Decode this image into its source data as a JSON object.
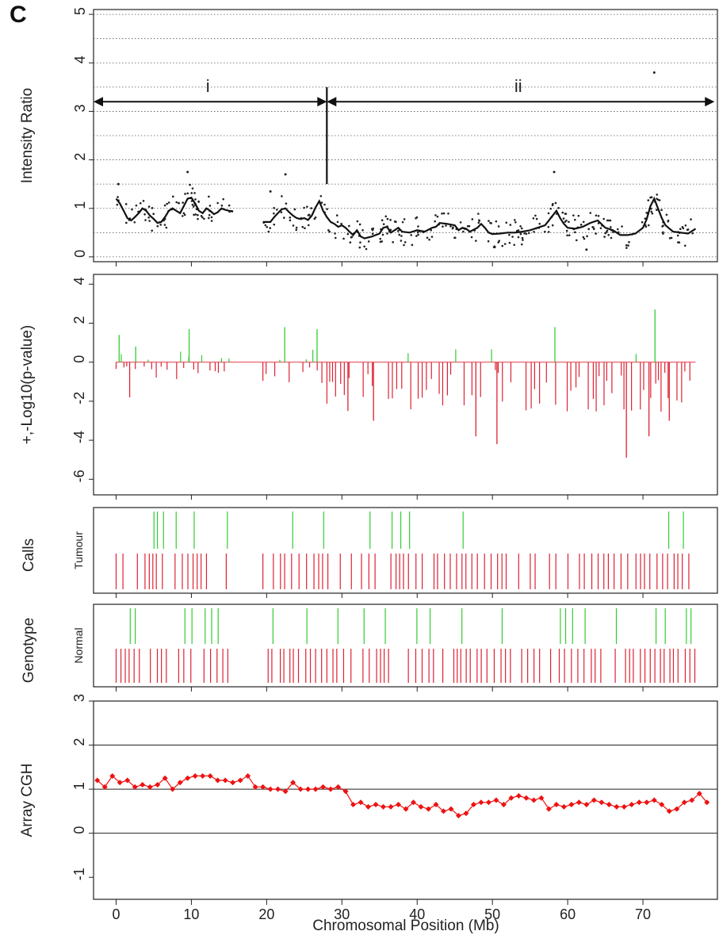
{
  "figure": {
    "panel_label": "C",
    "xlabel": "Chromosomal Position (Mb)",
    "colors": {
      "gain": "#33cc33",
      "loss": "#dd2233",
      "cgh": "#ee1111",
      "line": "#111111"
    }
  },
  "chart_data": [
    {
      "type": "scatter",
      "ylabel": "Intensity Ratio",
      "xlim": [
        -3,
        80
      ],
      "ylim": [
        -0.1,
        5.1
      ],
      "yticks": [
        0,
        1,
        2,
        3,
        4,
        5
      ],
      "xticks": [
        0,
        10,
        20,
        30,
        40,
        50,
        60,
        70
      ],
      "grid": "dotted-horizontal",
      "regions": [
        {
          "label": "i",
          "from": -3,
          "to": 28,
          "y": 3.2
        },
        {
          "label": "ii",
          "from": 28,
          "to": 79.5,
          "y": 3.2
        }
      ],
      "breakpoint": {
        "x": 28,
        "y_from": 1.5,
        "y_to": 3.5
      },
      "outliers": [
        {
          "x": 0.3,
          "y": 1.5
        },
        {
          "x": 9.5,
          "y": 1.75
        },
        {
          "x": 22.5,
          "y": 1.7
        },
        {
          "x": 20.5,
          "y": 1.35
        },
        {
          "x": 58.2,
          "y": 1.75
        },
        {
          "x": 71.5,
          "y": 3.8
        },
        {
          "x": 62.5,
          "y": 0.15
        },
        {
          "x": 50.3,
          "y": 0.2
        }
      ],
      "smoothed": [
        [
          [
            0.0,
            1.2
          ],
          [
            0.5,
            1.1
          ],
          [
            1.0,
            0.95
          ],
          [
            1.5,
            0.8
          ],
          [
            2.0,
            0.75
          ],
          [
            2.5,
            0.82
          ],
          [
            3.0,
            0.9
          ],
          [
            3.5,
            1.0
          ],
          [
            4.0,
            0.95
          ],
          [
            4.5,
            0.85
          ],
          [
            5.0,
            0.78
          ],
          [
            5.5,
            0.7
          ],
          [
            6.0,
            0.72
          ],
          [
            6.5,
            0.82
          ],
          [
            7.0,
            0.95
          ],
          [
            7.5,
            1.0
          ],
          [
            8.0,
            0.95
          ],
          [
            8.5,
            0.9
          ],
          [
            9.0,
            1.05
          ],
          [
            9.5,
            1.2
          ],
          [
            10.0,
            1.22
          ],
          [
            10.5,
            1.1
          ],
          [
            11.0,
            0.95
          ],
          [
            11.5,
            0.9
          ],
          [
            12.0,
            1.0
          ],
          [
            12.5,
            0.95
          ],
          [
            13.0,
            0.88
          ],
          [
            13.5,
            0.92
          ],
          [
            14.0,
            1.0
          ],
          [
            14.5,
            0.97
          ],
          [
            15.0,
            0.95
          ],
          [
            15.5,
            0.94
          ]
        ],
        [
          [
            19.5,
            0.72
          ],
          [
            20.5,
            0.72
          ],
          [
            21.0,
            0.82
          ],
          [
            21.5,
            0.9
          ],
          [
            22.0,
            0.98
          ],
          [
            22.5,
            1.0
          ],
          [
            23.0,
            0.92
          ],
          [
            23.5,
            0.85
          ],
          [
            24.0,
            0.8
          ],
          [
            24.5,
            0.78
          ],
          [
            25.0,
            0.8
          ],
          [
            25.5,
            0.76
          ],
          [
            26.0,
            0.85
          ],
          [
            26.5,
            1.02
          ],
          [
            27.0,
            1.15
          ],
          [
            27.5,
            0.95
          ],
          [
            28.0,
            0.82
          ],
          [
            28.5,
            0.72
          ],
          [
            29.0,
            0.68
          ],
          [
            29.5,
            0.62
          ],
          [
            30.0,
            0.65
          ],
          [
            30.5,
            0.6
          ],
          [
            31.0,
            0.52
          ],
          [
            31.5,
            0.45
          ],
          [
            32.0,
            0.55
          ],
          [
            32.5,
            0.42
          ],
          [
            33.0,
            0.38
          ],
          [
            34.0,
            0.42
          ],
          [
            35.0,
            0.48
          ],
          [
            35.5,
            0.6
          ],
          [
            36.0,
            0.62
          ],
          [
            36.5,
            0.5
          ],
          [
            37.0,
            0.55
          ],
          [
            37.5,
            0.6
          ],
          [
            38.0,
            0.52
          ],
          [
            39.0,
            0.5
          ],
          [
            40.0,
            0.55
          ],
          [
            41.0,
            0.52
          ],
          [
            42.0,
            0.6
          ],
          [
            42.5,
            0.62
          ],
          [
            43.0,
            0.7
          ],
          [
            44.0,
            0.68
          ],
          [
            45.0,
            0.65
          ],
          [
            45.5,
            0.55
          ],
          [
            46.0,
            0.6
          ],
          [
            46.5,
            0.58
          ],
          [
            47.0,
            0.52
          ],
          [
            48.0,
            0.6
          ],
          [
            48.5,
            0.68
          ],
          [
            49.0,
            0.6
          ],
          [
            49.5,
            0.5
          ],
          [
            50.0,
            0.47
          ],
          [
            51.0,
            0.48
          ],
          [
            52.0,
            0.5
          ],
          [
            53.0,
            0.5
          ],
          [
            54.0,
            0.52
          ],
          [
            55.0,
            0.55
          ],
          [
            56.0,
            0.6
          ],
          [
            57.0,
            0.65
          ],
          [
            58.0,
            0.85
          ],
          [
            58.5,
            0.95
          ],
          [
            59.0,
            0.8
          ],
          [
            59.5,
            0.68
          ],
          [
            60.0,
            0.6
          ],
          [
            61.0,
            0.58
          ],
          [
            62.0,
            0.62
          ],
          [
            63.0,
            0.7
          ],
          [
            64.0,
            0.75
          ],
          [
            65.0,
            0.6
          ],
          [
            66.0,
            0.55
          ],
          [
            67.0,
            0.45
          ],
          [
            68.0,
            0.45
          ],
          [
            69.0,
            0.48
          ],
          [
            70.0,
            0.6
          ],
          [
            70.5,
            0.78
          ],
          [
            71.0,
            1.05
          ],
          [
            71.5,
            1.2
          ],
          [
            72.0,
            1.0
          ],
          [
            72.5,
            0.8
          ],
          [
            73.0,
            0.65
          ],
          [
            74.0,
            0.52
          ],
          [
            75.0,
            0.5
          ],
          [
            76.0,
            0.48
          ],
          [
            77.0,
            0.58
          ]
        ]
      ]
    },
    {
      "type": "bar",
      "ylabel": "+,-Log10(p-value)",
      "xlim": [
        -3,
        80
      ],
      "ylim": [
        -6.8,
        4.5
      ],
      "yticks": [
        4,
        2,
        0,
        -2,
        -4,
        -6
      ],
      "note": "signed significance per SNP; positive bars green, negative bars red",
      "highlights": [
        {
          "x": 0.4,
          "y": 1.4
        },
        {
          "x": 2.6,
          "y": 0.8
        },
        {
          "x": 9.7,
          "y": 1.7
        },
        {
          "x": 22.4,
          "y": 1.8
        },
        {
          "x": 26.7,
          "y": 1.7
        },
        {
          "x": 58.3,
          "y": 1.8
        },
        {
          "x": 71.6,
          "y": 2.7
        },
        {
          "x": 50.6,
          "y": -4.2
        },
        {
          "x": 47.8,
          "y": -3.8
        },
        {
          "x": 67.8,
          "y": -4.9
        },
        {
          "x": 70.8,
          "y": -3.8
        },
        {
          "x": 73.5,
          "y": -3.0
        },
        {
          "x": 34.2,
          "y": -3.0
        },
        {
          "x": 30.8,
          "y": -2.5
        },
        {
          "x": 1.8,
          "y": -1.8
        }
      ]
    },
    {
      "type": "bar",
      "ylabel": "Calls",
      "track_label": "Tumour",
      "xlim": [
        -3,
        80
      ],
      "note": "genotype call tracks: upper green ticks, lower red ticks"
    },
    {
      "type": "bar",
      "ylabel": "Genotype",
      "track_label": "Normal",
      "xlim": [
        -3,
        80
      ]
    },
    {
      "type": "line",
      "ylabel": "Array CGH",
      "xlim": [
        -3,
        80
      ],
      "ylim": [
        -1.5,
        3
      ],
      "yticks": [
        3,
        2,
        1,
        0,
        -1
      ],
      "hlines": [
        2,
        1,
        0
      ],
      "series": [
        {
          "x": [
            -2.5,
            -1.5,
            -0.5,
            0.5,
            1.5,
            2.5,
            3.5,
            4.5,
            5.5,
            6.5,
            7.5,
            8.5,
            9.5,
            10.5,
            11.5,
            12.5,
            13.5,
            14.5,
            15.5,
            16.5,
            17.5,
            18.5,
            19.5,
            20.5,
            21.5,
            22.5,
            23.5,
            24.5,
            25.5,
            26.5,
            27.5,
            28.5,
            29.5,
            30.5,
            31.5,
            32.5,
            33.5,
            34.5,
            35.5,
            36.5,
            37.5,
            38.5,
            39.5,
            40.5,
            41.5,
            42.5,
            43.5,
            44.5,
            45.5,
            46.5,
            47.5,
            48.5,
            49.5,
            50.5,
            51.5,
            52.5,
            53.5,
            54.5,
            55.5,
            56.5,
            57.5,
            58.5,
            59.5,
            60.5,
            61.5,
            62.5,
            63.5,
            64.5,
            65.5,
            66.5,
            67.5,
            68.5,
            69.5,
            70.5,
            71.5,
            72.5,
            73.5,
            74.5,
            75.5,
            76.5,
            77.5,
            78.5
          ],
          "y": [
            1.2,
            1.05,
            1.3,
            1.15,
            1.2,
            1.05,
            1.1,
            1.05,
            1.1,
            1.25,
            1.0,
            1.15,
            1.25,
            1.3,
            1.3,
            1.3,
            1.2,
            1.2,
            1.15,
            1.2,
            1.3,
            1.05,
            1.05,
            1.0,
            1.0,
            0.95,
            1.15,
            1.0,
            1.0,
            1.0,
            1.05,
            1.0,
            1.05,
            0.95,
            0.65,
            0.7,
            0.6,
            0.65,
            0.6,
            0.6,
            0.65,
            0.55,
            0.7,
            0.6,
            0.55,
            0.65,
            0.5,
            0.55,
            0.4,
            0.45,
            0.65,
            0.7,
            0.7,
            0.75,
            0.65,
            0.8,
            0.85,
            0.8,
            0.75,
            0.8,
            0.55,
            0.65,
            0.6,
            0.65,
            0.7,
            0.65,
            0.75,
            0.7,
            0.65,
            0.6,
            0.6,
            0.65,
            0.7,
            0.7,
            0.75,
            0.65,
            0.5,
            0.55,
            0.7,
            0.75,
            0.9,
            0.7
          ]
        }
      ]
    }
  ]
}
